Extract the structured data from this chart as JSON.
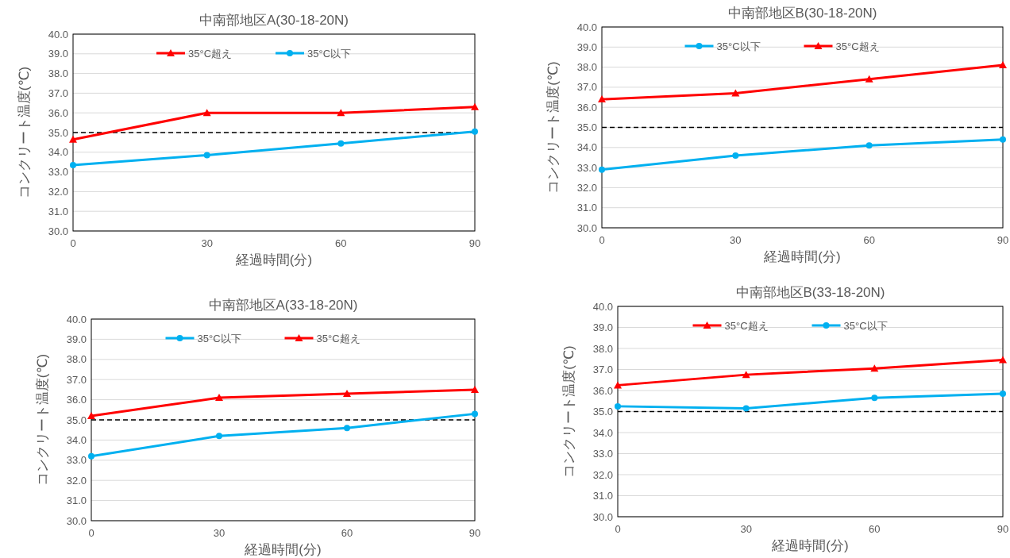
{
  "chart_data": [
    {
      "type": "line",
      "title": "中南部地区A(30-18-20N)",
      "xlabel": "経過時間(分)",
      "ylabel": "コンクリート温度(℃)",
      "x": [
        0,
        30,
        60,
        90
      ],
      "xlim": [
        0,
        90
      ],
      "xticks": [
        0,
        30,
        60,
        90
      ],
      "ylim": [
        30,
        40
      ],
      "yticks": [
        {
          "value": 30,
          "label": "30.0"
        },
        {
          "value": 31,
          "label": "31.0"
        },
        {
          "value": 32,
          "label": "32.0"
        },
        {
          "value": 33,
          "label": "33.0"
        },
        {
          "value": 34,
          "label": "34.0"
        },
        {
          "value": 35,
          "label": "35.0"
        },
        {
          "value": 36,
          "label": "36.0"
        },
        {
          "value": 37,
          "label": "37.0"
        },
        {
          "value": 38,
          "label": "38.0"
        },
        {
          "value": 39,
          "label": "39.0"
        },
        {
          "value": 40,
          "label": "40.0"
        }
      ],
      "grid": "y",
      "legend": "top",
      "line_style": "solid",
      "series": [
        {
          "name": "35°C超え",
          "color": "#ff0000",
          "marker": "triangle",
          "values": [
            34.65,
            36.0,
            36.0,
            36.3
          ]
        },
        {
          "name": "35°C以下",
          "color": "#00b0f0",
          "marker": "circle",
          "values": [
            33.35,
            33.85,
            34.45,
            35.05
          ]
        }
      ],
      "ref_lines": [
        {
          "axis": "y",
          "value": 35,
          "label": null,
          "color": "#000000",
          "line_style": "dashed"
        }
      ]
    },
    {
      "type": "line",
      "title": "中南部地区B(30-18-20N)",
      "xlabel": "経過時間(分)",
      "ylabel": "コンクリート温度(℃)",
      "x": [
        0,
        30,
        60,
        90
      ],
      "xlim": [
        0,
        90
      ],
      "xticks": [
        0,
        30,
        60,
        90
      ],
      "ylim": [
        30,
        40
      ],
      "yticks": [
        {
          "value": 30,
          "label": "30.0"
        },
        {
          "value": 31,
          "label": "31.0"
        },
        {
          "value": 32,
          "label": "32.0"
        },
        {
          "value": 33,
          "label": "33.0"
        },
        {
          "value": 34,
          "label": "34.0"
        },
        {
          "value": 35,
          "label": "35.0"
        },
        {
          "value": 36,
          "label": "36.0"
        },
        {
          "value": 37,
          "label": "37.0"
        },
        {
          "value": 38,
          "label": "38.0"
        },
        {
          "value": 39,
          "label": "39.0"
        },
        {
          "value": 40,
          "label": "40.0"
        }
      ],
      "grid": "y",
      "legend": "top",
      "line_style": "solid",
      "series": [
        {
          "name": "35°C以下",
          "color": "#00b0f0",
          "marker": "circle",
          "values": [
            32.9,
            33.6,
            34.1,
            34.4
          ]
        },
        {
          "name": "35°C超え",
          "color": "#ff0000",
          "marker": "triangle",
          "values": [
            36.4,
            36.7,
            37.4,
            38.1
          ]
        }
      ],
      "ref_lines": [
        {
          "axis": "y",
          "value": 35,
          "label": null,
          "color": "#000000",
          "line_style": "dashed"
        }
      ]
    },
    {
      "type": "line",
      "title": "中南部地区A(33-18-20N)",
      "xlabel": "経過時間(分)",
      "ylabel": "コンクリート温度(℃)",
      "x": [
        0,
        30,
        60,
        90
      ],
      "xlim": [
        0,
        90
      ],
      "xticks": [
        0,
        30,
        60,
        90
      ],
      "ylim": [
        30,
        40
      ],
      "yticks": [
        {
          "value": 30,
          "label": "30.0"
        },
        {
          "value": 31,
          "label": "31.0"
        },
        {
          "value": 32,
          "label": "32.0"
        },
        {
          "value": 33,
          "label": "33.0"
        },
        {
          "value": 34,
          "label": "34.0"
        },
        {
          "value": 35,
          "label": "35.0"
        },
        {
          "value": 36,
          "label": "36.0"
        },
        {
          "value": 37,
          "label": "37.0"
        },
        {
          "value": 38,
          "label": "38.0"
        },
        {
          "value": 39,
          "label": "39.0"
        },
        {
          "value": 40,
          "label": "40.0"
        }
      ],
      "grid": "y",
      "legend": "top",
      "line_style": "solid",
      "series": [
        {
          "name": "35°C以下",
          "color": "#00b0f0",
          "marker": "circle",
          "values": [
            33.2,
            34.2,
            34.6,
            35.3
          ]
        },
        {
          "name": "35°C超え",
          "color": "#ff0000",
          "marker": "triangle",
          "values": [
            35.2,
            36.1,
            36.3,
            36.5
          ]
        }
      ],
      "ref_lines": [
        {
          "axis": "y",
          "value": 35,
          "label": null,
          "color": "#000000",
          "line_style": "dashed"
        }
      ]
    },
    {
      "type": "line",
      "title": "中南部地区B(33-18-20N)",
      "xlabel": "経過時間(分)",
      "ylabel": "コンクリート温度(℃)",
      "x": [
        0,
        30,
        60,
        90
      ],
      "xlim": [
        0,
        90
      ],
      "xticks": [
        0,
        30,
        60,
        90
      ],
      "ylim": [
        30,
        40
      ],
      "yticks": [
        {
          "value": 30,
          "label": "30.0"
        },
        {
          "value": 31,
          "label": "31.0"
        },
        {
          "value": 32,
          "label": "32.0"
        },
        {
          "value": 33,
          "label": "33.0"
        },
        {
          "value": 34,
          "label": "34.0"
        },
        {
          "value": 35,
          "label": "35.0"
        },
        {
          "value": 36,
          "label": "36.0"
        },
        {
          "value": 37,
          "label": "37.0"
        },
        {
          "value": 38,
          "label": "38.0"
        },
        {
          "value": 39,
          "label": "39.0"
        },
        {
          "value": 40,
          "label": "40.0"
        }
      ],
      "grid": "y",
      "legend": "top",
      "line_style": "solid",
      "series": [
        {
          "name": "35°C超え",
          "color": "#ff0000",
          "marker": "triangle",
          "values": [
            36.25,
            36.75,
            37.05,
            37.45
          ]
        },
        {
          "name": "35°C以下",
          "color": "#00b0f0",
          "marker": "circle",
          "values": [
            35.25,
            35.15,
            35.65,
            35.85
          ]
        }
      ],
      "ref_lines": [
        {
          "axis": "y",
          "value": 35,
          "label": null,
          "color": "#000000",
          "line_style": "dashed"
        }
      ]
    }
  ]
}
